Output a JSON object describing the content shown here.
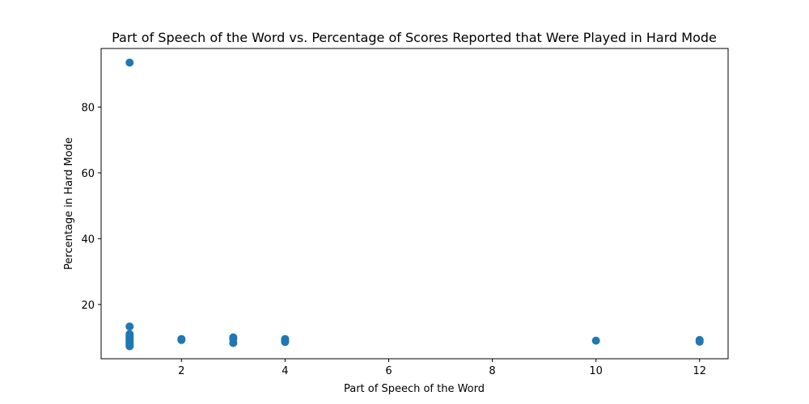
{
  "chart_data": {
    "type": "scatter",
    "title": "Part of Speech of the Word vs. Percentage of Scores Reported that Were Played in Hard Mode",
    "xlabel": "Part of Speech of the Word",
    "ylabel": "Percentage in Hard Mode",
    "xlim": [
      0.45,
      12.55
    ],
    "ylim": [
      3.5,
      97.8
    ],
    "xticks": [
      2,
      4,
      6,
      8,
      10,
      12
    ],
    "yticks": [
      20,
      40,
      60,
      80
    ],
    "grid": false,
    "legend": "none",
    "marker_color": "#1f77b4",
    "points": [
      {
        "x": 1,
        "y": 93.5
      },
      {
        "x": 1,
        "y": 13.3
      },
      {
        "x": 1,
        "y": 11.0
      },
      {
        "x": 1,
        "y": 10.5
      },
      {
        "x": 1,
        "y": 10.0
      },
      {
        "x": 1,
        "y": 9.6
      },
      {
        "x": 1,
        "y": 9.2
      },
      {
        "x": 1,
        "y": 8.8
      },
      {
        "x": 1,
        "y": 8.4
      },
      {
        "x": 1,
        "y": 8.0
      },
      {
        "x": 1,
        "y": 7.6
      },
      {
        "x": 1,
        "y": 7.3
      },
      {
        "x": 2,
        "y": 9.5
      },
      {
        "x": 2,
        "y": 9.2
      },
      {
        "x": 3,
        "y": 10.0
      },
      {
        "x": 3,
        "y": 9.5
      },
      {
        "x": 3,
        "y": 8.3
      },
      {
        "x": 4,
        "y": 9.5
      },
      {
        "x": 4,
        "y": 9.0
      },
      {
        "x": 4,
        "y": 8.6
      },
      {
        "x": 10,
        "y": 9.0
      },
      {
        "x": 12,
        "y": 9.2
      },
      {
        "x": 12,
        "y": 8.7
      }
    ]
  }
}
